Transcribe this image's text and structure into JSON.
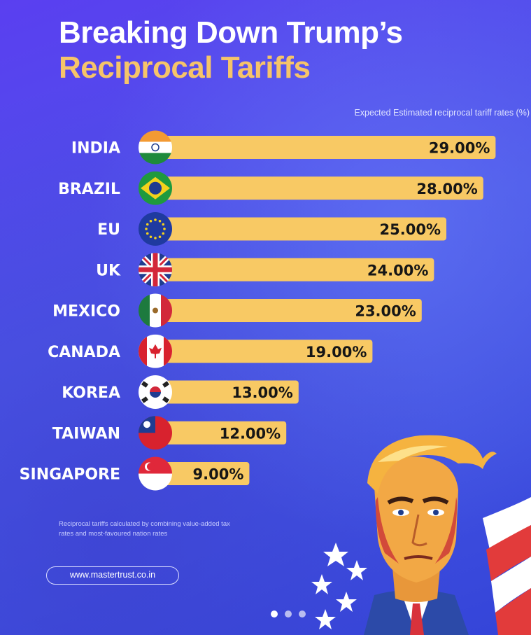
{
  "header": {
    "title_line1": "Breaking Down Trump’s",
    "title_line2": "Reciprocal Tariffs"
  },
  "chart_data": {
    "type": "bar",
    "orientation": "horizontal",
    "subtitle": "Expected Estimated reciprocal tariff rates (%)",
    "categories": [
      "INDIA",
      "BRAZIL",
      "EU",
      "UK",
      "MEXICO",
      "CANADA",
      "KOREA",
      "TAIWAN",
      "SINGAPORE"
    ],
    "values": [
      29,
      28,
      25,
      24,
      23,
      19,
      13,
      12,
      9
    ],
    "value_labels": [
      "29.00%",
      "28.00%",
      "25.00%",
      "24.00%",
      "23.00%",
      "19.00%",
      "13.00%",
      "12.00%",
      "9.00%"
    ],
    "flags": [
      "india-flag-icon",
      "brazil-flag-icon",
      "eu-flag-icon",
      "uk-flag-icon",
      "mexico-flag-icon",
      "canada-flag-icon",
      "korea-flag-icon",
      "taiwan-flag-icon",
      "singapore-flag-icon"
    ],
    "bar_color": "#f8c964",
    "grid": false,
    "legend": "none"
  },
  "footnote": "Reciprocal tariffs calculated by combining value-added tax rates and most-favoured nation rates",
  "footer": {
    "url": "www.mastertrust.co.in"
  },
  "pagination": {
    "total": 3,
    "active": 1
  },
  "colors": {
    "background": "#4b4fe6",
    "title_accent": "#f6c469",
    "bar": "#f8c964"
  },
  "illustration": "trump-portrait-illustration"
}
